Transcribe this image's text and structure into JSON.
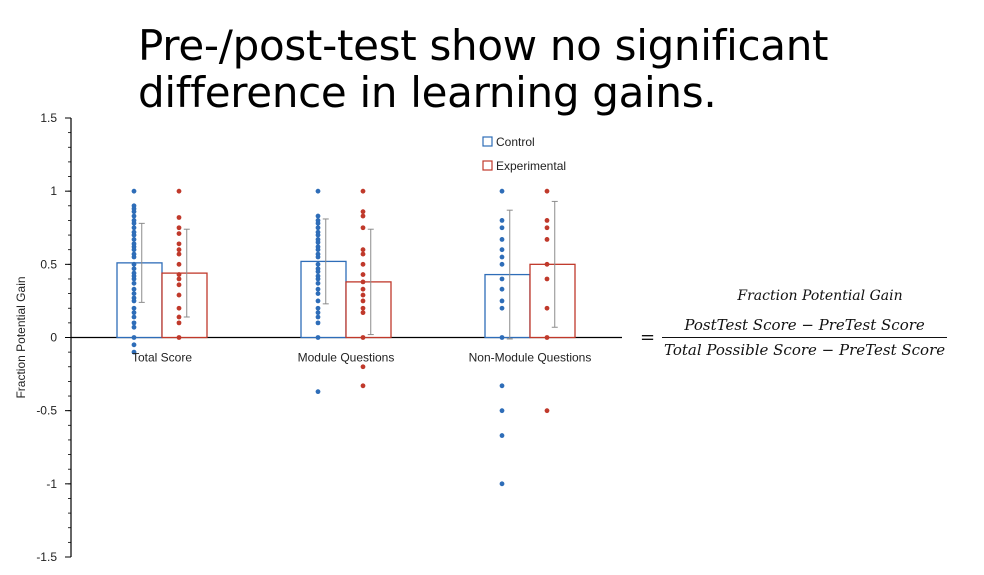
{
  "title": {
    "line1": "Pre-/post-test show no significant",
    "line2": "difference in learning gains."
  },
  "formula": {
    "title": "Fraction Potential Gain",
    "equals": "=",
    "numerator": "PostTest Score − PreTest Score",
    "denominator": "Total Possible Score − PreTest Score"
  },
  "colors": {
    "control": "#2e6db8",
    "experimental": "#c0392b",
    "error": "#8c8c8c"
  },
  "chart_data": {
    "type": "bar",
    "ylabel": "Fraction Potential Gain",
    "ylim": [
      -1.5,
      1.5
    ],
    "yticks": [
      "1.5",
      "1",
      "0.5",
      "0",
      "-0.5",
      "-1",
      "-1.5"
    ],
    "yticks_values": [
      1.5,
      1,
      0.5,
      0,
      -0.5,
      -1,
      -1.5
    ],
    "categories": [
      "Total Score",
      "Module Questions",
      "Non-Module Questions"
    ],
    "legend": {
      "placement": "top-center"
    },
    "series": [
      {
        "name": "Control",
        "values": [
          0.51,
          0.52,
          0.43
        ],
        "error": [
          0.27,
          0.29,
          0.44
        ],
        "points": [
          [
            1.0,
            0.9,
            0.88,
            0.86,
            0.83,
            0.8,
            0.78,
            0.75,
            0.72,
            0.7,
            0.67,
            0.64,
            0.62,
            0.6,
            0.57,
            0.55,
            0.5,
            0.47,
            0.44,
            0.42,
            0.4,
            0.37,
            0.33,
            0.3,
            0.27,
            0.25,
            0.2,
            0.17,
            0.14,
            0.1,
            0.07,
            0.0,
            -0.05,
            -0.1
          ],
          [
            1.0,
            0.83,
            0.8,
            0.78,
            0.75,
            0.72,
            0.7,
            0.67,
            0.65,
            0.62,
            0.6,
            0.57,
            0.55,
            0.5,
            0.47,
            0.45,
            0.42,
            0.4,
            0.37,
            0.33,
            0.3,
            0.25,
            0.2,
            0.17,
            0.14,
            0.1,
            0.0,
            -0.37
          ],
          [
            1.0,
            0.8,
            0.75,
            0.67,
            0.6,
            0.55,
            0.5,
            0.4,
            0.33,
            0.25,
            0.2,
            0.0,
            -0.33,
            -0.5,
            -0.67,
            -1.0
          ]
        ]
      },
      {
        "name": "Experimental",
        "values": [
          0.44,
          0.38,
          0.5
        ],
        "error": [
          0.3,
          0.36,
          0.43
        ],
        "points": [
          [
            1.0,
            0.82,
            0.75,
            0.71,
            0.64,
            0.6,
            0.57,
            0.5,
            0.43,
            0.4,
            0.36,
            0.29,
            0.2,
            0.14,
            0.1,
            0.0
          ],
          [
            1.0,
            0.86,
            0.83,
            0.75,
            0.6,
            0.57,
            0.5,
            0.43,
            0.38,
            0.33,
            0.29,
            0.25,
            0.2,
            0.17,
            0.0,
            -0.2,
            -0.33
          ],
          [
            1.0,
            0.8,
            0.75,
            0.67,
            0.5,
            0.4,
            0.2,
            0.0,
            -0.5
          ]
        ]
      }
    ]
  }
}
